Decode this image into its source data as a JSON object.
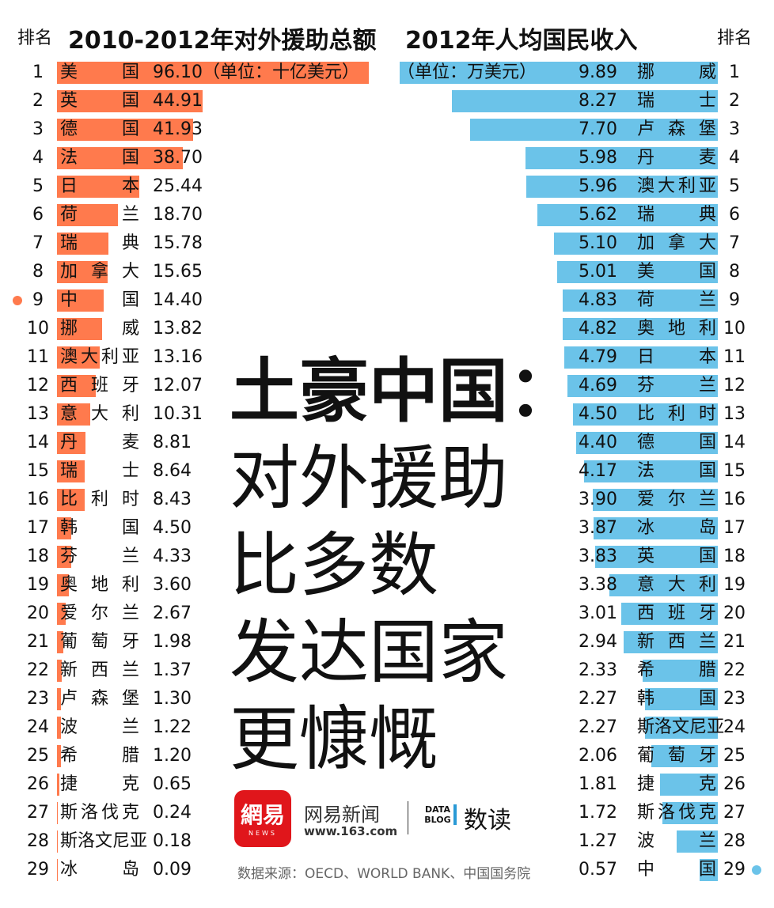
{
  "colors": {
    "aid": "#FF7A4D",
    "income": "#6BC3E9"
  },
  "headers": {
    "rank_label": "排名",
    "left_title": "2010-2012年对外援助总额",
    "right_title": "2012年人均国民收入"
  },
  "headline": [
    "土豪中国：",
    "对外援助",
    "比多数",
    "发达国家",
    "更慷慨"
  ],
  "logo": {
    "brand": "網易",
    "news": "NEWS",
    "name": "网易新闻",
    "url": "www.163.com",
    "datablog": "DATA BLOG",
    "shudu": "数读"
  },
  "source": "数据来源：OECD、WORLD BANK、中国国务院",
  "chart_data": [
    {
      "type": "bar",
      "title": "2010-2012年对外援助总额",
      "unit": "（单位：十亿美元）",
      "highlight": "中国",
      "categories": [
        "美国",
        "英国",
        "德国",
        "法国",
        "日本",
        "荷兰",
        "瑞典",
        "加拿大",
        "中国",
        "挪威",
        "澳大利亚",
        "西班牙",
        "意大利",
        "丹麦",
        "瑞士",
        "比利时",
        "韩国",
        "芬兰",
        "奥地利",
        "爱尔兰",
        "葡萄牙",
        "新西兰",
        "卢森堡",
        "波兰",
        "希腊",
        "捷克",
        "斯洛伐克",
        "斯洛文尼亚",
        "冰岛"
      ],
      "values": [
        96.1,
        44.91,
        41.93,
        38.7,
        25.44,
        18.7,
        15.78,
        15.65,
        14.4,
        13.82,
        13.16,
        12.07,
        10.31,
        8.81,
        8.64,
        8.43,
        4.5,
        4.33,
        3.6,
        2.67,
        1.98,
        1.37,
        1.3,
        1.22,
        1.2,
        0.65,
        0.24,
        0.18,
        0.09
      ]
    },
    {
      "type": "bar",
      "title": "2012年人均国民收入",
      "unit": "（单位：万美元）",
      "highlight": "中国",
      "categories": [
        "挪威",
        "瑞士",
        "卢森堡",
        "丹麦",
        "澳大利亚",
        "瑞典",
        "加拿大",
        "美国",
        "荷兰",
        "奥地利",
        "日本",
        "芬兰",
        "比利时",
        "德国",
        "法国",
        "爱尔兰",
        "冰岛",
        "英国",
        "意大利",
        "西班牙",
        "新西兰",
        "希腊",
        "韩国",
        "斯洛文尼亚",
        "葡萄牙",
        "捷克",
        "斯洛伐克",
        "波兰",
        "中国"
      ],
      "values": [
        9.89,
        8.27,
        7.7,
        5.98,
        5.96,
        5.62,
        5.1,
        5.01,
        4.83,
        4.82,
        4.79,
        4.69,
        4.5,
        4.4,
        4.17,
        3.9,
        3.87,
        3.83,
        3.38,
        3.01,
        2.94,
        2.33,
        2.27,
        2.27,
        2.06,
        1.81,
        1.72,
        1.27,
        0.57
      ]
    }
  ]
}
